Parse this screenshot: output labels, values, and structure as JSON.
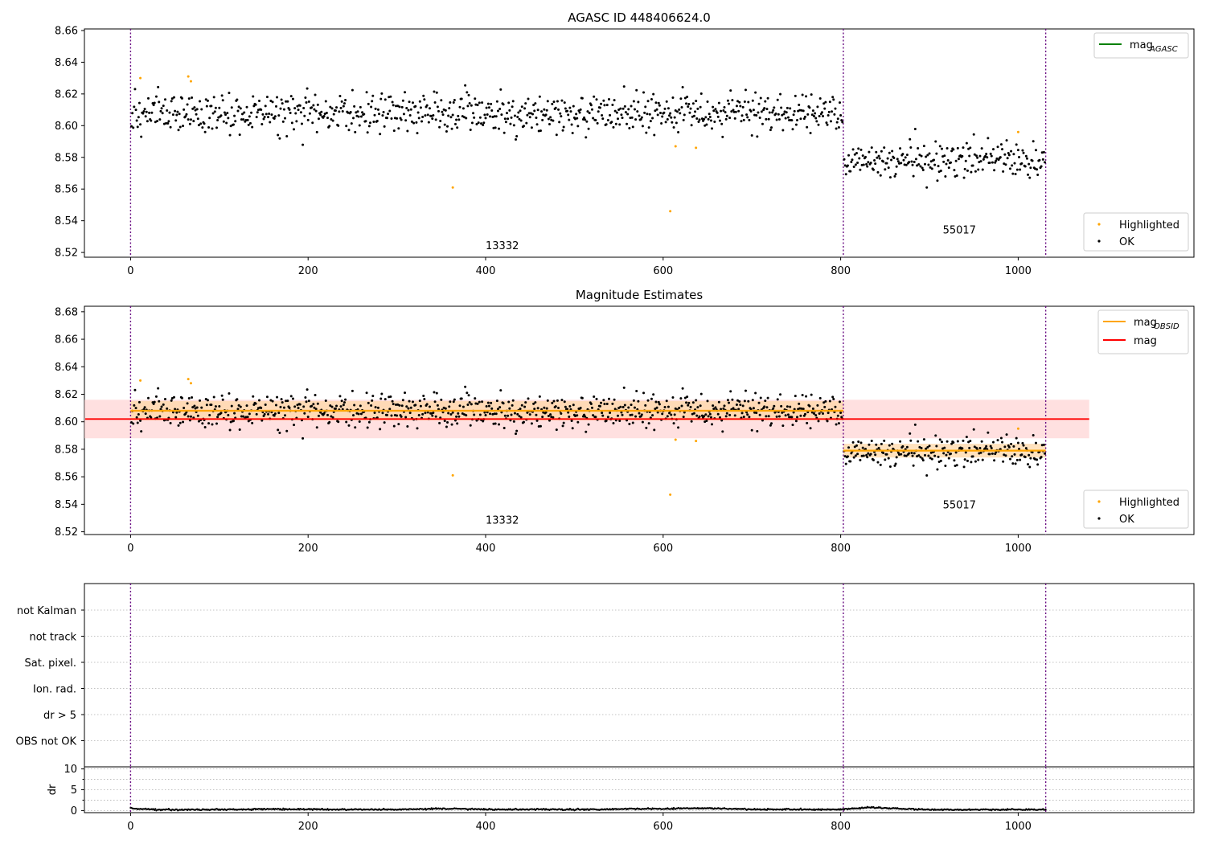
{
  "figure": {
    "title": "AGASC ID 448406624.0",
    "colors": {
      "ok": "#000000",
      "highlighted": "#ffa500",
      "agasc_line": "#008000",
      "obsid_line": "#ffa500",
      "mag_line": "#ff0000",
      "obsid_band": "#ffd8a8",
      "mag_band": "#ffcccc",
      "obs_boundary": "#6a0d83"
    }
  },
  "chart_data": [
    {
      "type": "scatter",
      "title": "AGASC ID 448406624.0",
      "xlabel": "",
      "ylabel": "",
      "xlim": [
        -52,
        1198
      ],
      "ylim": [
        8.517,
        8.661
      ],
      "xticks": [
        0,
        200,
        400,
        600,
        800,
        1000
      ],
      "yticks": [
        8.52,
        8.54,
        8.56,
        8.58,
        8.6,
        8.62,
        8.64,
        8.66
      ],
      "grid": false,
      "observations": [
        {
          "label": "13332",
          "start": 0,
          "end": 803,
          "mean": 8.608,
          "sd": 0.0062
        },
        {
          "label": "55017",
          "start": 803,
          "end": 1031,
          "mean": 8.578,
          "sd": 0.005
        }
      ],
      "obs_boundaries": [
        0,
        803,
        1031
      ],
      "obs_labels": [
        {
          "text": "13332",
          "x": 400,
          "y": 8.522
        },
        {
          "text": "55017",
          "x": 915,
          "y": 8.532
        }
      ],
      "highlighted_points": [
        {
          "x": 11,
          "y": 8.63
        },
        {
          "x": 65,
          "y": 8.631
        },
        {
          "x": 68,
          "y": 8.628
        },
        {
          "x": 363,
          "y": 8.561
        },
        {
          "x": 608,
          "y": 8.546
        },
        {
          "x": 614,
          "y": 8.587
        },
        {
          "x": 637,
          "y": 8.586
        },
        {
          "x": 1000,
          "y": 8.596
        }
      ],
      "legend": {
        "position": "top-right and bottom-right",
        "top": [
          {
            "label": "mag",
            "subscript": "AGASC",
            "style": "line",
            "color": "#008000"
          }
        ],
        "bottom": [
          {
            "label": "Highlighted",
            "style": "marker",
            "color": "#ffa500"
          },
          {
            "label": "OK",
            "style": "marker",
            "color": "#000000"
          }
        ]
      }
    },
    {
      "type": "scatter",
      "title": "Magnitude Estimates",
      "xlabel": "",
      "ylabel": "",
      "xlim": [
        -52,
        1198
      ],
      "ylim": [
        8.518,
        8.684
      ],
      "xticks": [
        0,
        200,
        400,
        600,
        800,
        1000
      ],
      "yticks": [
        8.52,
        8.54,
        8.56,
        8.58,
        8.6,
        8.62,
        8.64,
        8.66,
        8.68
      ],
      "grid": false,
      "observations": [
        {
          "label": "13332",
          "start": 0,
          "end": 803,
          "mean": 8.608,
          "sd": 0.0062
        },
        {
          "label": "55017",
          "start": 803,
          "end": 1031,
          "mean": 8.578,
          "sd": 0.005
        }
      ],
      "obs_boundaries": [
        0,
        803,
        1031
      ],
      "obs_labels": [
        {
          "text": "13332",
          "x": 400,
          "y": 8.526
        },
        {
          "text": "55017",
          "x": 915,
          "y": 8.537
        }
      ],
      "mag_obsid": [
        {
          "x0": 0,
          "x1": 803,
          "y": 8.608,
          "band": [
            8.601,
            8.615
          ]
        },
        {
          "x0": 803,
          "x1": 1031,
          "y": 8.579,
          "band": [
            8.574,
            8.584
          ]
        }
      ],
      "mag": {
        "x0": -52,
        "x1": 1080,
        "y": 8.602,
        "band": [
          8.588,
          8.616
        ]
      },
      "highlighted_points": [
        {
          "x": 11,
          "y": 8.63
        },
        {
          "x": 65,
          "y": 8.631
        },
        {
          "x": 68,
          "y": 8.628
        },
        {
          "x": 363,
          "y": 8.561
        },
        {
          "x": 608,
          "y": 8.547
        },
        {
          "x": 614,
          "y": 8.587
        },
        {
          "x": 637,
          "y": 8.586
        },
        {
          "x": 1000,
          "y": 8.595
        }
      ],
      "legend": {
        "position": "top-right and bottom-right",
        "top": [
          {
            "label": "mag",
            "subscript": "OBSID",
            "style": "line",
            "color": "#ffa500"
          },
          {
            "label": "mag",
            "subscript": "",
            "style": "line",
            "color": "#ff0000"
          }
        ],
        "bottom": [
          {
            "label": "Highlighted",
            "style": "marker",
            "color": "#ffa500"
          },
          {
            "label": "OK",
            "style": "marker",
            "color": "#000000"
          }
        ]
      }
    },
    {
      "type": "scatter",
      "title": "",
      "xlabel": "",
      "ylabel": "",
      "xlim": [
        -52,
        1198
      ],
      "categories": [
        "not Kalman",
        "not track",
        "Sat. pixel.",
        "Ion. rad.",
        "dr > 5",
        "OBS not OK"
      ],
      "grid": true,
      "obs_boundaries": [
        0,
        803,
        1031
      ],
      "flags": []
    },
    {
      "type": "line",
      "title": "",
      "xlabel": "",
      "ylabel": "dr",
      "xlim": [
        -52,
        1198
      ],
      "ylim": [
        -0.5,
        10.5
      ],
      "xticks": [
        0,
        200,
        400,
        600,
        800,
        1000
      ],
      "yticks": [
        0,
        5,
        10
      ],
      "minor_yticks": [
        2.5,
        7.5
      ],
      "grid": true,
      "obs_boundaries": [
        0,
        803,
        1031
      ],
      "dr_profile": [
        {
          "x": 0,
          "y": 0.55
        },
        {
          "x": 15,
          "y": 0.3
        },
        {
          "x": 40,
          "y": 0.2
        },
        {
          "x": 120,
          "y": 0.25
        },
        {
          "x": 170,
          "y": 0.35
        },
        {
          "x": 200,
          "y": 0.3
        },
        {
          "x": 300,
          "y": 0.25
        },
        {
          "x": 350,
          "y": 0.45
        },
        {
          "x": 400,
          "y": 0.3
        },
        {
          "x": 500,
          "y": 0.25
        },
        {
          "x": 600,
          "y": 0.45
        },
        {
          "x": 650,
          "y": 0.55
        },
        {
          "x": 700,
          "y": 0.3
        },
        {
          "x": 800,
          "y": 0.25
        },
        {
          "x": 832,
          "y": 0.75
        },
        {
          "x": 900,
          "y": 0.2
        },
        {
          "x": 1031,
          "y": 0.25
        }
      ]
    }
  ]
}
